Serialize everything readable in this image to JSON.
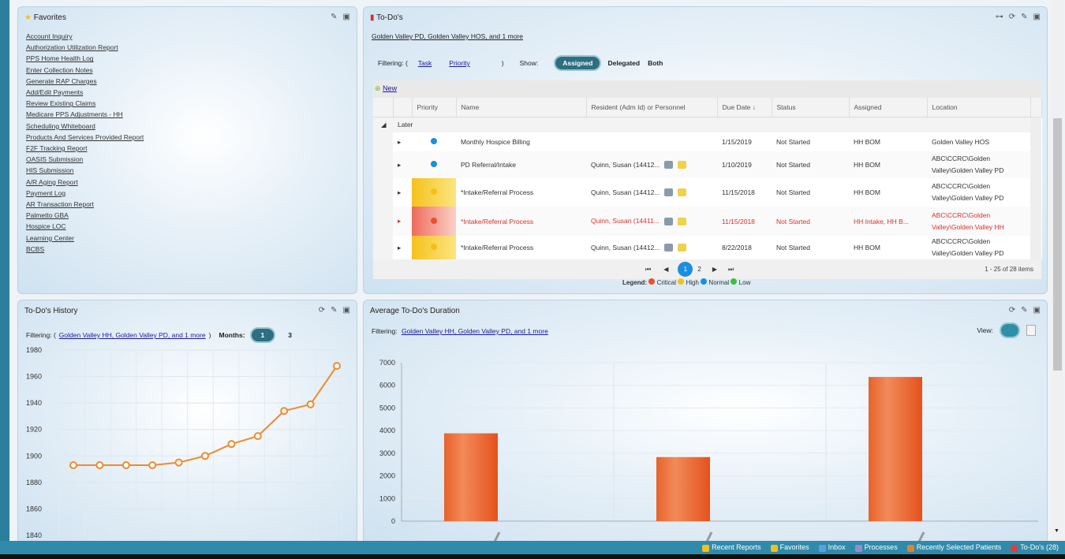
{
  "favorites": {
    "title": "Favorites",
    "items": [
      "Account Inquiry",
      "Authorization Utilization Report",
      "PPS Home Health Log",
      "Enter Collection Notes",
      "Generate RAP Charges",
      "Add/Edit Payments",
      "Review Existing Claims",
      "Medicare PPS Adjustments - HH",
      "Scheduling Whiteboard",
      "Products And Services Provided Report",
      "F2F Tracking Report",
      "OASIS Submission",
      "HIS Submission",
      "A/R Aging Report",
      "Payment Log",
      "AR Transaction Report",
      "Palmetto GBA",
      "Hospice LOC",
      "Learning Center",
      "BCBS"
    ]
  },
  "todos": {
    "title": "To-Do's",
    "filter_link": "Golden Valley PD, Golden Valley HOS, and 1 more",
    "filtering_label": "Filtering: (",
    "filter_task": "Task",
    "filter_priority": "Priority",
    "filter_close": ")",
    "show_label": "Show:",
    "show_options": [
      "Assigned",
      "Delegated",
      "Both"
    ],
    "new_label": "New",
    "columns": [
      "",
      "",
      "Priority",
      "Name",
      "Resident (Adm Id) or Personnel",
      "Due Date ↓",
      "Status",
      "Assigned",
      "Location"
    ],
    "group": "Later",
    "rows": [
      {
        "priority": "normal",
        "name": "Monthly Hospice Billing",
        "resident": "",
        "due": "1/15/2019",
        "status": "Not Started",
        "assigned": "HH BOM",
        "location": "Golden Valley HOS"
      },
      {
        "priority": "normal",
        "name": "PD Referral/Intake",
        "resident": "Quinn, Susan (14412...",
        "due": "1/10/2019",
        "status": "Not Started",
        "assigned": "HH BOM",
        "location": "ABC\\CCRC\\Golden Valley\\Golden Valley PD"
      },
      {
        "priority": "high",
        "name": "*Intake/Referral Process",
        "resident": "Quinn, Susan (14412...",
        "due": "11/15/2018",
        "status": "Not Started",
        "assigned": "HH BOM",
        "location": "ABC\\CCRC\\Golden Valley\\Golden Valley PD"
      },
      {
        "priority": "critical",
        "name": "*Intake/Referral Process",
        "resident": "Quinn, Susan (14411...",
        "due": "11/15/2018",
        "status": "Not Started",
        "assigned": "HH Intake, HH B...",
        "location": "ABC\\CCRC\\Golden Valley\\Golden Valley HH"
      },
      {
        "priority": "high",
        "name": "*Intake/Referral Process",
        "resident": "Quinn, Susan (14412...",
        "due": "8/22/2018",
        "status": "Not Started",
        "assigned": "HH BOM",
        "location": "ABC\\CCRC\\Golden Valley\\Golden Valley PD"
      }
    ],
    "pager": {
      "pages": [
        "1",
        "2"
      ],
      "summary": "1 - 25 of 28 items"
    },
    "legend": {
      "label": "Legend:",
      "items": [
        "Critical",
        "High",
        "Normal",
        "Low"
      ]
    }
  },
  "colors": {
    "critical": "#e8502f",
    "high": "#f2c01a",
    "normal": "#1a8fe0",
    "low": "#3cbf3c",
    "accent": "#2d6f80",
    "bar": "#ea5a22",
    "line": "#f08a2c"
  },
  "history": {
    "title": "To-Do's History",
    "filtering_label": "Filtering: (",
    "filter_link": "Golden Valley HH, Golden Valley PD, and 1 more",
    "filter_close": ")",
    "months_label": "Months:",
    "months_options": [
      "1",
      "3"
    ]
  },
  "duration": {
    "title": "Average To-Do's Duration",
    "filtering_label": "Filtering:",
    "filter_link": "Golden Valley HH, Golden Valley PD, and 1 more",
    "view_label": "View:"
  },
  "chart_data": [
    {
      "type": "line",
      "title": "To-Do's History",
      "values": [
        1893,
        1893,
        1893,
        1893,
        1895,
        1900,
        1909,
        1915,
        1934,
        1939,
        1968
      ],
      "ylim": [
        1840,
        1980
      ],
      "yticks": [
        "1980",
        "1960",
        "1940",
        "1920",
        "1900",
        "1880",
        "1860",
        "1840"
      ],
      "grid": true
    },
    {
      "type": "bar",
      "title": "Average To-Do's Duration",
      "values": [
        3880,
        2830,
        6370
      ],
      "ylim": [
        0,
        7000
      ],
      "yticks": [
        "7000",
        "6000",
        "5000",
        "4000",
        "3000",
        "2000",
        "1000",
        "0"
      ],
      "grid": true
    }
  ],
  "footer": {
    "items": [
      "Recent Reports",
      "Favorites",
      "Inbox",
      "Processes",
      "Recently Selected Patients",
      "To-Do's (28)"
    ]
  }
}
